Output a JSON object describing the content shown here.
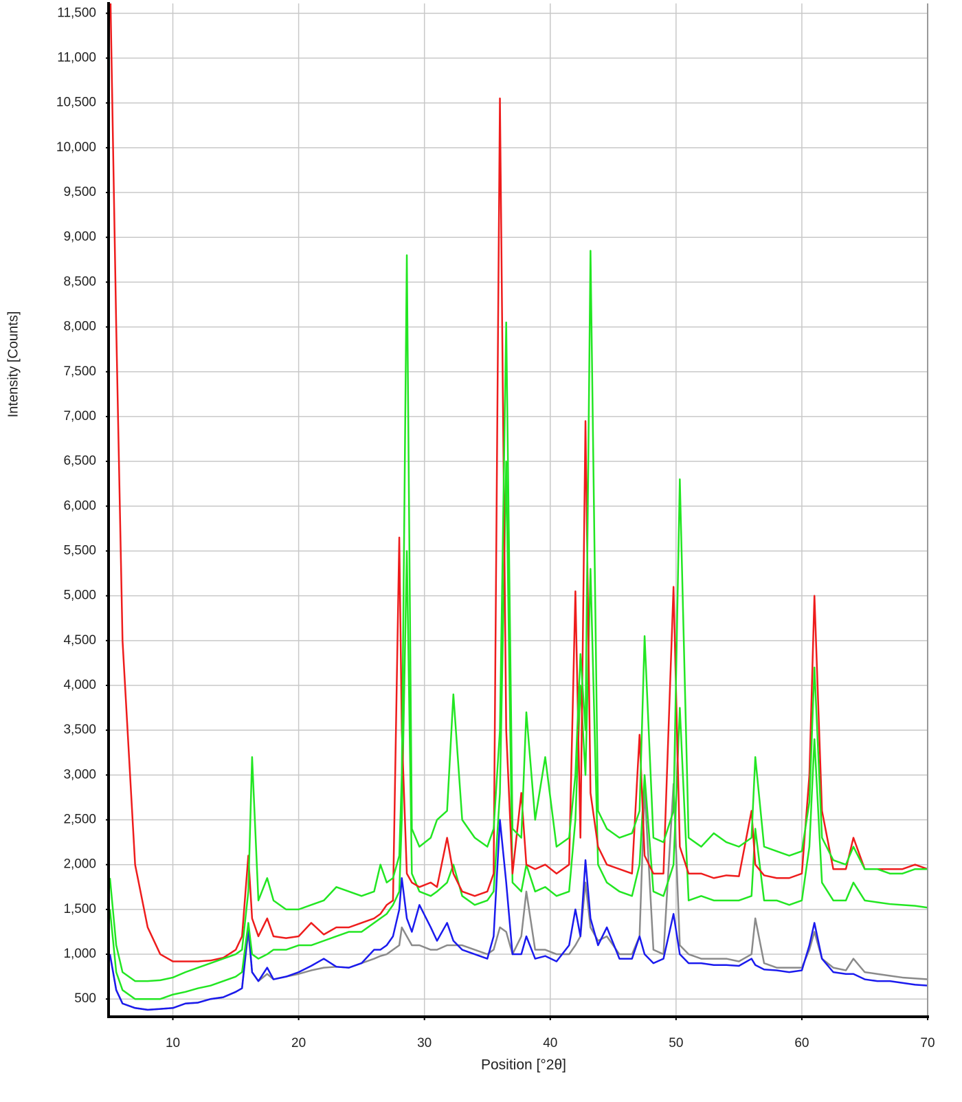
{
  "chart_data": {
    "type": "line",
    "x_label": "Position [°2θ]",
    "y_label": "Intensity [Counts]",
    "x": [
      5,
      5.5,
      6,
      7,
      8,
      9,
      10,
      11,
      12,
      13,
      14,
      15,
      15.5,
      16,
      16.3,
      16.8,
      17.5,
      18,
      19,
      20,
      21,
      22,
      23,
      24,
      25,
      26,
      26.5,
      27,
      27.5,
      28,
      28.2,
      28.6,
      29,
      29.6,
      30.5,
      31,
      31.8,
      32.3,
      33,
      34,
      35,
      35.5,
      36,
      36.5,
      37,
      37.7,
      38.1,
      38.8,
      39.6,
      40.5,
      41.5,
      42,
      42.4,
      42.8,
      43.2,
      43.8,
      44.5,
      45.5,
      46.5,
      47.1,
      47.5,
      48.2,
      49,
      49.8,
      50.3,
      51,
      52,
      53,
      54,
      55,
      56,
      56.3,
      57,
      58,
      59,
      60,
      60.6,
      61,
      61.6,
      62.5,
      63.5,
      64.1,
      65,
      66,
      67,
      68,
      69,
      70
    ],
    "series": [
      {
        "color": "#8a8a8a",
        "values": [
          1000,
          600,
          450,
          400,
          380,
          390,
          400,
          450,
          460,
          500,
          520,
          580,
          620,
          1250,
          800,
          700,
          780,
          720,
          750,
          780,
          820,
          850,
          860,
          850,
          900,
          950,
          980,
          1000,
          1050,
          1100,
          1300,
          1200,
          1100,
          1100,
          1050,
          1050,
          1100,
          1100,
          1100,
          1050,
          1000,
          1050,
          1300,
          1250,
          1000,
          1200,
          1700,
          1050,
          1050,
          1000,
          1000,
          1100,
          1200,
          1800,
          1300,
          1150,
          1200,
          1000,
          1000,
          1200,
          2850,
          1050,
          1000,
          2900,
          1100,
          1000,
          950,
          950,
          950,
          920,
          1000,
          1400,
          900,
          850,
          850,
          850,
          1050,
          1250,
          950,
          850,
          820,
          950,
          800,
          780,
          760,
          740,
          730,
          720
        ]
      },
      {
        "color": "#1a1aee",
        "values": [
          1000,
          600,
          450,
          400,
          380,
          390,
          400,
          450,
          460,
          500,
          520,
          580,
          620,
          1300,
          800,
          700,
          850,
          720,
          750,
          800,
          870,
          950,
          860,
          850,
          900,
          1050,
          1050,
          1100,
          1200,
          1500,
          1850,
          1400,
          1250,
          1550,
          1300,
          1150,
          1350,
          1150,
          1050,
          1000,
          950,
          1200,
          2500,
          1800,
          1000,
          1000,
          1200,
          950,
          980,
          920,
          1100,
          1500,
          1200,
          2050,
          1400,
          1100,
          1300,
          950,
          950,
          1200,
          1000,
          900,
          950,
          1450,
          1000,
          900,
          900,
          880,
          880,
          870,
          950,
          880,
          830,
          820,
          800,
          820,
          1100,
          1350,
          950,
          800,
          780,
          780,
          720,
          700,
          700,
          680,
          660,
          650
        ]
      },
      {
        "color": "#22e622",
        "values": [
          1500,
          800,
          600,
          500,
          500,
          500,
          550,
          580,
          620,
          650,
          700,
          750,
          800,
          1350,
          1000,
          950,
          1000,
          1050,
          1050,
          1100,
          1100,
          1150,
          1200,
          1250,
          1250,
          1350,
          1400,
          1450,
          1550,
          1700,
          2500,
          5500,
          1900,
          1700,
          1650,
          1700,
          1800,
          2000,
          1650,
          1550,
          1600,
          1700,
          2800,
          6500,
          1800,
          1700,
          2000,
          1700,
          1750,
          1650,
          1700,
          2500,
          4000,
          3000,
          5300,
          2000,
          1800,
          1700,
          1650,
          2000,
          3000,
          1700,
          1650,
          2000,
          3750,
          1600,
          1650,
          1600,
          1600,
          1600,
          1650,
          2400,
          1600,
          1600,
          1550,
          1600,
          2200,
          3400,
          1800,
          1600,
          1600,
          1800,
          1600,
          1580,
          1560,
          1550,
          1540,
          1520
        ]
      },
      {
        "color": "#ee1c1c",
        "values": [
          12000,
          8000,
          4500,
          2000,
          1300,
          1000,
          920,
          920,
          920,
          930,
          960,
          1050,
          1200,
          2100,
          1400,
          1200,
          1400,
          1200,
          1180,
          1200,
          1350,
          1220,
          1300,
          1300,
          1350,
          1400,
          1450,
          1550,
          1600,
          5650,
          3500,
          1900,
          1800,
          1750,
          1800,
          1750,
          2300,
          1900,
          1700,
          1650,
          1700,
          1900,
          10550,
          3500,
          1900,
          2800,
          2000,
          1950,
          2000,
          1900,
          2000,
          5050,
          2300,
          6950,
          2800,
          2200,
          2000,
          1950,
          1900,
          3450,
          2100,
          1900,
          1900,
          5100,
          2200,
          1900,
          1900,
          1850,
          1880,
          1870,
          2600,
          2000,
          1880,
          1850,
          1850,
          1900,
          3000,
          5000,
          2600,
          1950,
          1950,
          2300,
          1950,
          1950,
          1950,
          1950,
          2000,
          1950
        ]
      },
      {
        "color": "#22e622",
        "values": [
          1850,
          1100,
          800,
          700,
          700,
          710,
          740,
          800,
          850,
          900,
          950,
          1000,
          1050,
          1700,
          3200,
          1600,
          1850,
          1600,
          1500,
          1500,
          1550,
          1600,
          1750,
          1700,
          1650,
          1700,
          2000,
          1800,
          1850,
          2100,
          3000,
          8800,
          2400,
          2200,
          2300,
          2500,
          2600,
          3900,
          2500,
          2300,
          2200,
          2400,
          3500,
          8050,
          2400,
          2300,
          3700,
          2500,
          3200,
          2200,
          2300,
          3000,
          4350,
          3500,
          8850,
          2600,
          2400,
          2300,
          2350,
          2600,
          4550,
          2300,
          2250,
          2600,
          6300,
          2300,
          2200,
          2350,
          2250,
          2200,
          2300,
          3200,
          2200,
          2150,
          2100,
          2150,
          2700,
          4200,
          2300,
          2050,
          2000,
          2200,
          1950,
          1950,
          1900,
          1900,
          1950,
          1950
        ]
      }
    ],
    "xlim": [
      5,
      70
    ],
    "xticks": [
      10,
      20,
      30,
      40,
      50,
      60,
      70
    ],
    "ylim": [
      310,
      11610
    ],
    "yticks": [
      500,
      {
        "value": 1000,
        "label": "1,000"
      },
      {
        "value": 1500,
        "label": "1,500"
      },
      {
        "value": 2000,
        "label": "2,000"
      },
      {
        "value": 2500,
        "label": "2,500"
      },
      {
        "value": 3000,
        "label": "3,000"
      },
      {
        "value": 3500,
        "label": "3,500"
      },
      {
        "value": 4000,
        "label": "4,000"
      },
      {
        "value": 4500,
        "label": "4,500"
      },
      {
        "value": 5000,
        "label": "5,000"
      },
      {
        "value": 5500,
        "label": "5,500"
      },
      {
        "value": 6000,
        "label": "6,000"
      },
      {
        "value": 6500,
        "label": "6,500"
      },
      {
        "value": 7000,
        "label": "7,000"
      },
      {
        "value": 7500,
        "label": "7,500"
      },
      {
        "value": 8000,
        "label": "8,000"
      },
      {
        "value": 8500,
        "label": "8,500"
      },
      {
        "value": 9000,
        "label": "9,000"
      },
      {
        "value": 9500,
        "label": "9,500"
      },
      {
        "value": 10000,
        "label": "10,000"
      },
      {
        "value": 10500,
        "label": "10,500"
      },
      {
        "value": 11000,
        "label": "11,000"
      },
      {
        "value": 11500,
        "label": "11,500"
      }
    ],
    "grid": true
  }
}
